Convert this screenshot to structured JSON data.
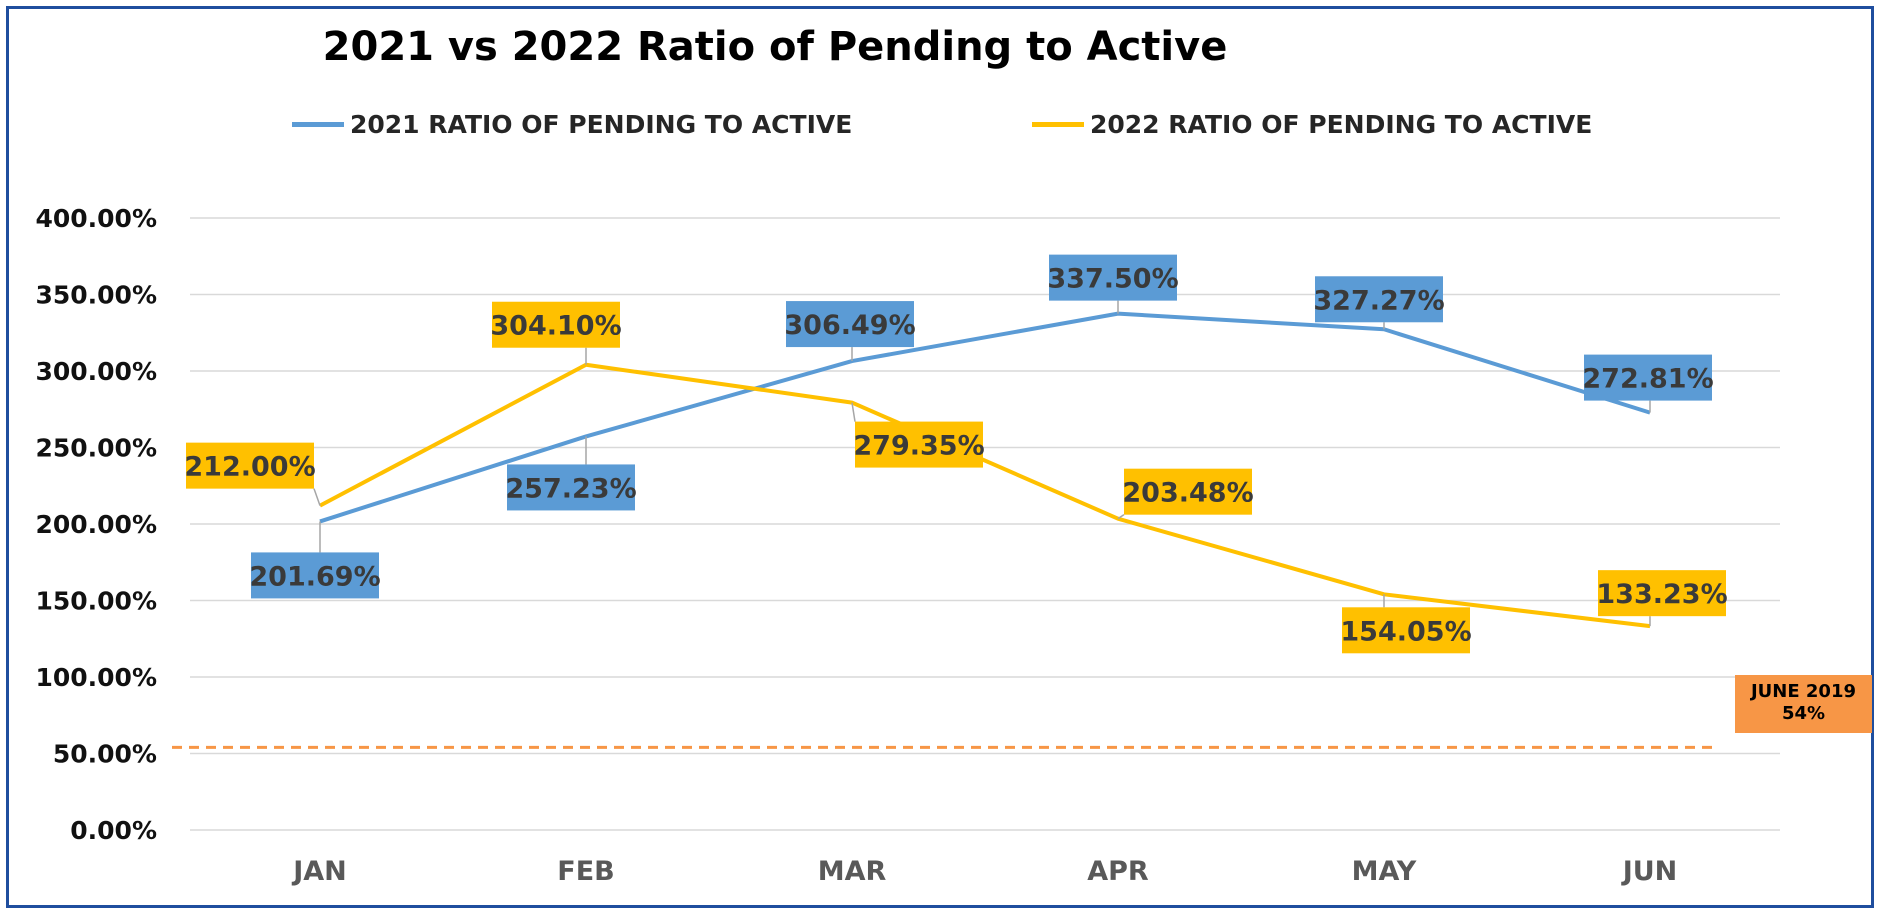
{
  "chart_data": {
    "type": "line",
    "title": "2021 vs 2022 Ratio of Pending to Active",
    "categories": [
      "JAN",
      "FEB",
      "MAR",
      "APR",
      "MAY",
      "JUN"
    ],
    "series": [
      {
        "name": "2021 RATIO OF PENDING TO ACTIVE",
        "color": "#5b9bd5",
        "label_bg": "#5b9bd5",
        "values": [
          201.69,
          257.23,
          306.49,
          337.5,
          327.27,
          272.81
        ],
        "labels": [
          "201.69%",
          "257.23%",
          "306.49%",
          "337.50%",
          "327.27%",
          "272.81%"
        ]
      },
      {
        "name": "2022 RATIO OF PENDING TO ACTIVE",
        "color": "#ffc000",
        "label_bg": "#ffc000",
        "values": [
          212.0,
          304.1,
          279.35,
          203.48,
          154.05,
          133.23
        ],
        "labels": [
          "212.00%",
          "304.10%",
          "279.35%",
          "203.48%",
          "154.05%",
          "133.23%"
        ]
      }
    ],
    "ylim": [
      0,
      400
    ],
    "yticks": [
      0,
      50,
      100,
      150,
      200,
      250,
      300,
      350,
      400
    ],
    "ytick_labels": [
      "0.00%",
      "50.00%",
      "100.00%",
      "150.00%",
      "200.00%",
      "250.00%",
      "300.00%",
      "350.00%",
      "400.00%"
    ],
    "grid": true,
    "legend_position": "top",
    "reference_line": {
      "value": 54,
      "color": "#f79646",
      "style": "dashed",
      "label_line1": "JUNE 2019",
      "label_line2": "54%"
    }
  }
}
